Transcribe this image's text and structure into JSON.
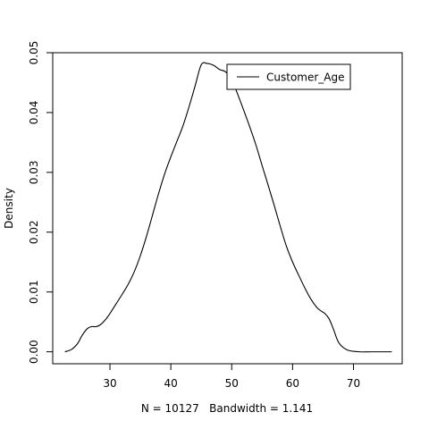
{
  "chart_data": {
    "type": "line",
    "title": "",
    "xlabel": "N = 10127   Bandwidth = 1.141",
    "ylabel": "Density",
    "xlim": [
      20.6,
      78.0
    ],
    "ylim": [
      -0.002,
      0.05
    ],
    "x_ticks": [
      30,
      40,
      50,
      60,
      70
    ],
    "y_ticks": [
      0.0,
      0.01,
      0.02,
      0.03,
      0.04,
      0.05
    ],
    "x_tick_labels": [
      "30",
      "40",
      "50",
      "60",
      "70"
    ],
    "y_tick_labels": [
      "0.00",
      "0.01",
      "0.02",
      "0.03",
      "0.04",
      "0.05"
    ],
    "grid": false,
    "legend": {
      "position": "top-right",
      "entries": [
        "Customer_Age"
      ]
    },
    "series": [
      {
        "name": "Customer_Age",
        "color": "#000000",
        "x": [
          22.6,
          23.7,
          24.7,
          25.4,
          26.2,
          26.9,
          27.7,
          28.4,
          29.2,
          30.0,
          31.0,
          32.0,
          33.0,
          34.0,
          35.0,
          36.0,
          37.0,
          38.0,
          39.0,
          40.0,
          41.0,
          42.0,
          43.0,
          44.0,
          45.0,
          46.0,
          47.0,
          48.0,
          49.0,
          50.0,
          51.0,
          52.0,
          53.0,
          54.0,
          55.0,
          56.0,
          57.0,
          58.0,
          59.0,
          60.0,
          61.0,
          62.0,
          63.0,
          64.0,
          64.7,
          65.3,
          66.0,
          66.7,
          67.6,
          69.0,
          71.0,
          73.0,
          76.3
        ],
        "y": [
          0.0,
          0.0004,
          0.0014,
          0.0027,
          0.0038,
          0.0042,
          0.0042,
          0.0045,
          0.0053,
          0.0064,
          0.008,
          0.0096,
          0.0113,
          0.0134,
          0.0161,
          0.0193,
          0.0229,
          0.0265,
          0.0298,
          0.0326,
          0.0352,
          0.0378,
          0.041,
          0.0445,
          0.048,
          0.0482,
          0.0479,
          0.0472,
          0.0468,
          0.0455,
          0.043,
          0.0403,
          0.0375,
          0.0345,
          0.0311,
          0.0278,
          0.0244,
          0.0209,
          0.0176,
          0.015,
          0.0128,
          0.0107,
          0.0088,
          0.0074,
          0.0068,
          0.0064,
          0.0055,
          0.0038,
          0.0015,
          0.0003,
          0.0,
          0.0,
          0.0
        ]
      }
    ]
  }
}
